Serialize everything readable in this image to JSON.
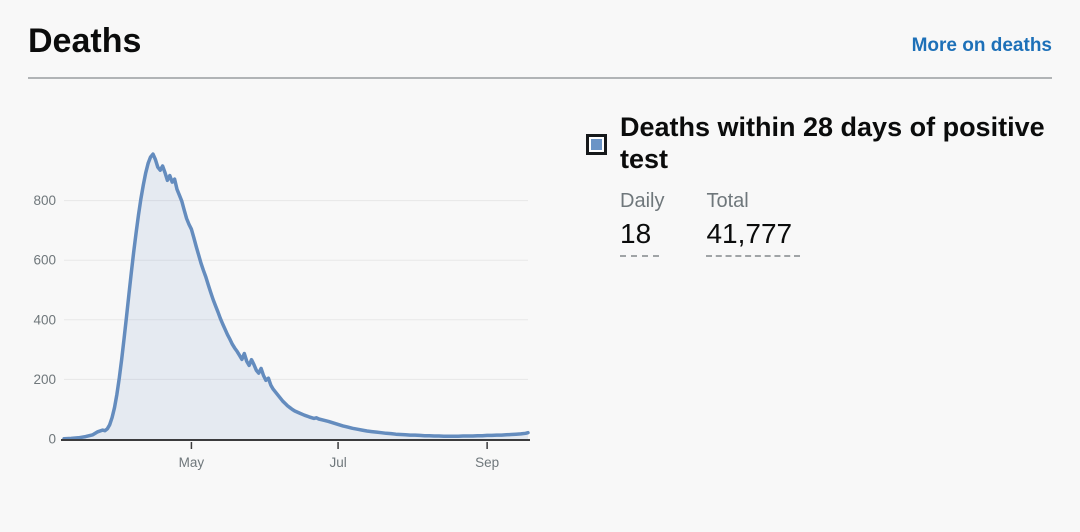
{
  "header": {
    "title": "Deaths",
    "link_label": "More on deaths",
    "link_color": "#1d70b8"
  },
  "legend": {
    "title": "Deaths within 28 days of positive test",
    "swatch_color": "#6b94c6"
  },
  "stats": [
    {
      "label": "Daily",
      "value": "18"
    },
    {
      "label": "Total",
      "value": "41,777"
    }
  ],
  "chart_data": {
    "type": "area",
    "series": [
      {
        "name": "Deaths within 28 days of positive test",
        "points": [
          [
            0,
            1
          ],
          [
            3,
            2
          ],
          [
            6,
            4
          ],
          [
            9,
            8
          ],
          [
            12,
            14
          ],
          [
            14,
            24
          ],
          [
            16,
            30
          ],
          [
            17,
            28
          ],
          [
            18,
            34
          ],
          [
            19,
            48
          ],
          [
            20,
            72
          ],
          [
            21,
            105
          ],
          [
            22,
            150
          ],
          [
            23,
            205
          ],
          [
            24,
            268
          ],
          [
            25,
            338
          ],
          [
            26,
            410
          ],
          [
            27,
            485
          ],
          [
            28,
            558
          ],
          [
            29,
            628
          ],
          [
            30,
            692
          ],
          [
            31,
            752
          ],
          [
            32,
            806
          ],
          [
            33,
            852
          ],
          [
            34,
            893
          ],
          [
            35,
            925
          ],
          [
            36,
            946
          ],
          [
            37,
            956
          ],
          [
            38,
            938
          ],
          [
            39,
            912
          ],
          [
            40,
            902
          ],
          [
            41,
            916
          ],
          [
            42,
            894
          ],
          [
            43,
            868
          ],
          [
            44,
            884
          ],
          [
            45,
            862
          ],
          [
            46,
            872
          ],
          [
            47,
            838
          ],
          [
            48,
            818
          ],
          [
            49,
            798
          ],
          [
            50,
            768
          ],
          [
            51,
            740
          ],
          [
            52,
            720
          ],
          [
            53,
            704
          ],
          [
            54,
            676
          ],
          [
            55,
            646
          ],
          [
            56,
            618
          ],
          [
            57,
            590
          ],
          [
            58,
            566
          ],
          [
            59,
            544
          ],
          [
            60,
            518
          ],
          [
            61,
            492
          ],
          [
            62,
            468
          ],
          [
            63,
            447
          ],
          [
            64,
            427
          ],
          [
            65,
            405
          ],
          [
            66,
            386
          ],
          [
            67,
            368
          ],
          [
            68,
            350
          ],
          [
            69,
            335
          ],
          [
            70,
            318
          ],
          [
            71,
            305
          ],
          [
            72,
            294
          ],
          [
            73,
            281
          ],
          [
            74,
            267
          ],
          [
            75,
            287
          ],
          [
            76,
            261
          ],
          [
            77,
            247
          ],
          [
            78,
            266
          ],
          [
            79,
            250
          ],
          [
            80,
            231
          ],
          [
            81,
            221
          ],
          [
            82,
            237
          ],
          [
            83,
            213
          ],
          [
            84,
            197
          ],
          [
            85,
            204
          ],
          [
            86,
            181
          ],
          [
            87,
            167
          ],
          [
            88,
            157
          ],
          [
            89,
            147
          ],
          [
            90,
            137
          ],
          [
            91,
            127
          ],
          [
            92,
            119
          ],
          [
            93,
            111
          ],
          [
            94,
            105
          ],
          [
            95,
            99
          ],
          [
            96,
            94
          ],
          [
            98,
            87
          ],
          [
            100,
            80
          ],
          [
            102,
            74
          ],
          [
            104,
            69
          ],
          [
            105,
            71
          ],
          [
            106,
            67
          ],
          [
            108,
            63
          ],
          [
            110,
            59
          ],
          [
            112,
            54
          ],
          [
            114,
            49
          ],
          [
            116,
            44
          ],
          [
            118,
            40
          ],
          [
            120,
            36
          ],
          [
            122,
            33
          ],
          [
            124,
            30
          ],
          [
            126,
            27
          ],
          [
            128,
            25
          ],
          [
            130,
            23
          ],
          [
            132,
            21
          ],
          [
            134,
            19
          ],
          [
            136,
            18
          ],
          [
            138,
            16
          ],
          [
            140,
            15
          ],
          [
            142,
            14
          ],
          [
            144,
            13
          ],
          [
            146,
            13
          ],
          [
            148,
            12
          ],
          [
            150,
            11
          ],
          [
            152,
            11
          ],
          [
            154,
            10
          ],
          [
            156,
            10
          ],
          [
            158,
            9
          ],
          [
            160,
            9
          ],
          [
            162,
            9
          ],
          [
            164,
            9
          ],
          [
            166,
            10
          ],
          [
            168,
            10
          ],
          [
            170,
            10
          ],
          [
            172,
            11
          ],
          [
            174,
            11
          ],
          [
            176,
            12
          ],
          [
            178,
            12
          ],
          [
            180,
            13
          ],
          [
            182,
            13
          ],
          [
            184,
            14
          ],
          [
            186,
            15
          ],
          [
            188,
            16
          ],
          [
            190,
            17
          ],
          [
            192,
            19
          ],
          [
            193,
            21
          ]
        ]
      }
    ],
    "x_max": 193,
    "y_max": 1000,
    "x_ticks": [
      {
        "label": "May",
        "x": 53
      },
      {
        "label": "Jul",
        "x": 114
      },
      {
        "label": "Sep",
        "x": 176
      }
    ],
    "y_ticks": [
      0,
      200,
      400,
      600,
      800
    ],
    "grid": true,
    "legend_position": "right",
    "colors": {
      "line": "#648cbe",
      "fill": "rgba(100,140,190,0.13)",
      "axis": "#3b3b3d",
      "gridline": "#e7e7e7",
      "tick_label": "#6f777b"
    }
  }
}
